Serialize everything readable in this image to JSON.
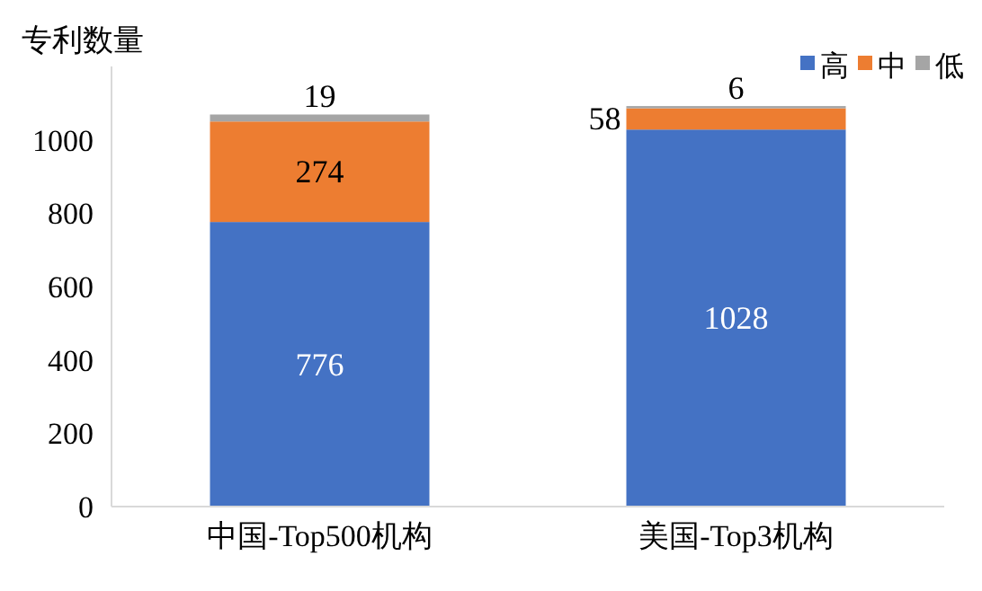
{
  "chart_data": {
    "type": "bar",
    "stacked": true,
    "ylabel": "专利数量",
    "categories": [
      "中国-Top500机构",
      "美国-Top3机构"
    ],
    "series": [
      {
        "name": "高",
        "color": "#4472c4",
        "values": [
          776,
          1028
        ]
      },
      {
        "name": "中",
        "color": "#ed7d31",
        "values": [
          274,
          58
        ]
      },
      {
        "name": "低",
        "color": "#a5a5a5",
        "values": [
          19,
          6
        ]
      }
    ],
    "ylim": [
      0,
      1200
    ],
    "yticks": [
      0,
      200,
      400,
      600,
      800,
      1000
    ],
    "data_labels": true,
    "legend": "top right",
    "grid": false
  }
}
